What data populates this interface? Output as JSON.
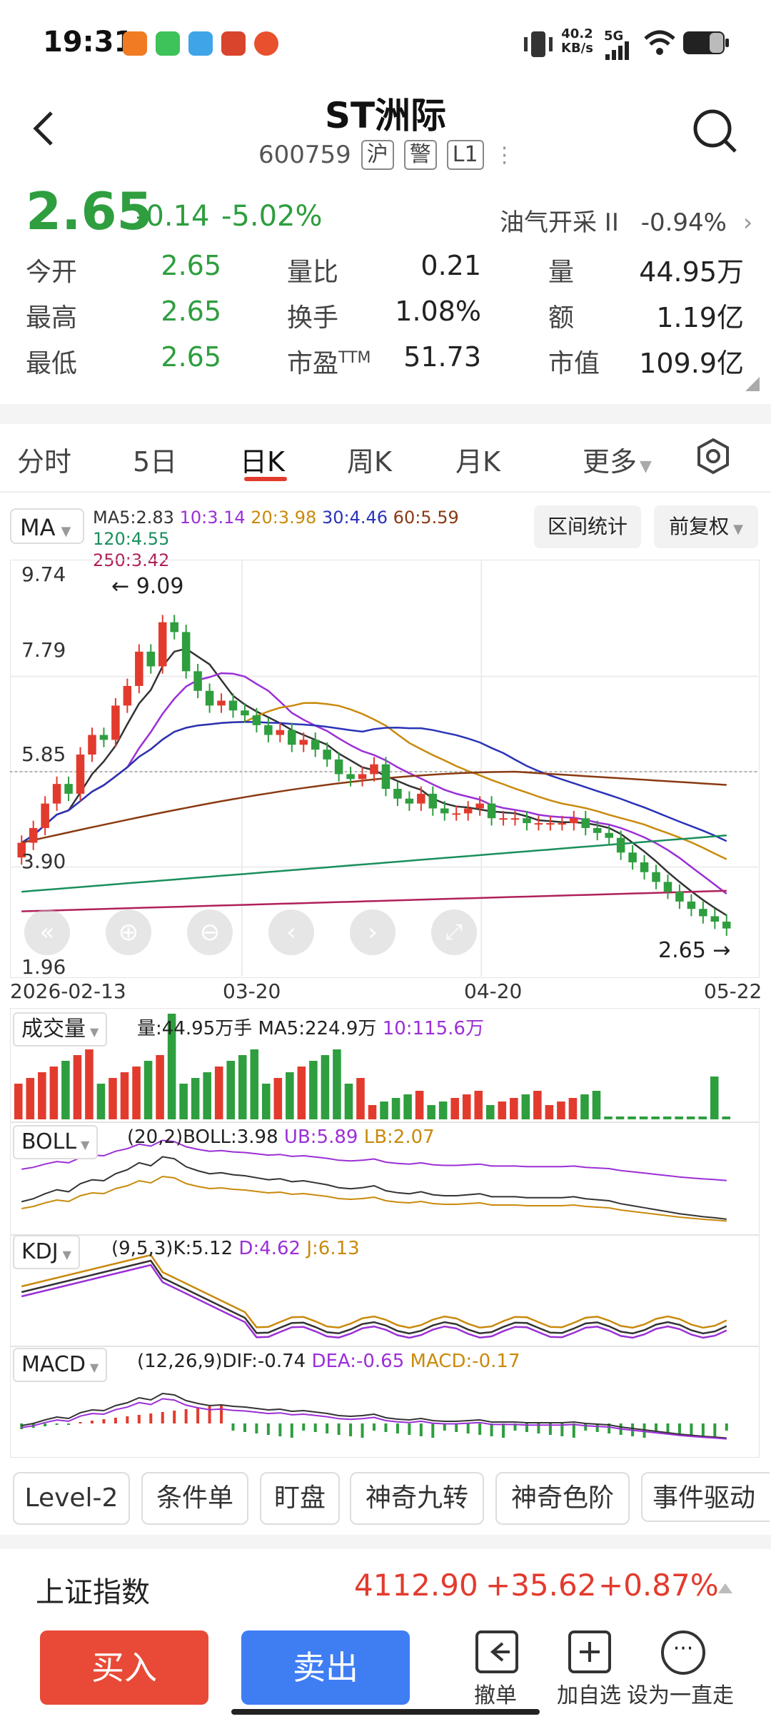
{
  "status_bar": {
    "time": "19:31",
    "net_speed_value": "40.2",
    "net_speed_unit": "KB/s",
    "network": "5G"
  },
  "header": {
    "title": "ST洲际",
    "code": "600759",
    "tags": [
      "沪",
      "警",
      "L1"
    ]
  },
  "quote": {
    "price": "2.65",
    "change": "-0.14",
    "change_pct": "-5.02%",
    "sector_name": "油气开采 II",
    "sector_pct": "-0.94%",
    "stats": [
      {
        "label": "今开",
        "value": "2.65",
        "color": "green"
      },
      {
        "label": "量比",
        "value": "0.21",
        "color": "black"
      },
      {
        "label": "量",
        "value": "44.95万",
        "color": "black"
      },
      {
        "label": "最高",
        "value": "2.65",
        "color": "green"
      },
      {
        "label": "换手",
        "value": "1.08%",
        "color": "black"
      },
      {
        "label": "额",
        "value": "1.19亿",
        "color": "black"
      },
      {
        "label": "最低",
        "value": "2.65",
        "color": "green"
      },
      {
        "label": "市盈",
        "label_sup": "TTM",
        "value": "51.73",
        "color": "black"
      },
      {
        "label": "市值",
        "value": "109.9亿",
        "color": "black"
      }
    ]
  },
  "tabs": [
    {
      "label": "分时"
    },
    {
      "label": "5日"
    },
    {
      "label": "日K",
      "active": true
    },
    {
      "label": "周K"
    },
    {
      "label": "月K"
    },
    {
      "label": "更多"
    }
  ],
  "kline": {
    "indicator": "MA",
    "ma_legend": [
      {
        "text": "MA5:2.83",
        "color": "#333333"
      },
      {
        "text": "10:3.14",
        "color": "#9b2fd6"
      },
      {
        "text": "20:3.98",
        "color": "#c98a0c"
      },
      {
        "text": "30:4.46",
        "color": "#2a33b8"
      },
      {
        "text": "60:5.59",
        "color": "#8a3a12"
      },
      {
        "text": "120:4.55",
        "color": "#1a8f5c"
      },
      {
        "text": "250:3.42",
        "color": "#b0205a"
      }
    ],
    "buttons": [
      "区间统计",
      "前复权"
    ],
    "y_labels": [
      "9.74",
      "7.79",
      "5.85",
      "3.90",
      "1.96"
    ],
    "x_labels": [
      "2026-02-13",
      "03-20",
      "04-20",
      "05-22"
    ],
    "high_label": "9.09",
    "low_label": "2.65"
  },
  "chart_data": {
    "type": "candlestick",
    "ylim": [
      1.96,
      9.74
    ],
    "x_labels": [
      "2026-02-13",
      "03-20",
      "04-20",
      "05-22"
    ],
    "annotations": {
      "high": 9.09,
      "last": 2.65
    },
    "ma": {
      "MA5": 2.83,
      "MA10": 3.14,
      "MA20": 3.98,
      "MA30": 4.46,
      "MA60": 5.59,
      "MA120": 4.55,
      "MA250": 3.42
    },
    "closes": [
      4.4,
      4.7,
      5.2,
      5.6,
      5.4,
      6.2,
      6.6,
      6.5,
      7.2,
      7.6,
      8.3,
      8.0,
      8.9,
      8.7,
      7.9,
      7.5,
      7.2,
      7.3,
      7.1,
      7.0,
      6.8,
      6.6,
      6.7,
      6.4,
      6.5,
      6.3,
      6.1,
      5.8,
      5.7,
      5.8,
      6.0,
      5.5,
      5.3,
      5.2,
      5.4,
      5.1,
      5.0,
      5.0,
      5.1,
      5.2,
      4.9,
      4.9,
      4.9,
      4.8,
      4.8,
      4.8,
      4.8,
      4.9,
      4.7,
      4.6,
      4.5,
      4.2,
      4.0,
      3.8,
      3.6,
      3.4,
      3.2,
      3.05,
      2.9,
      2.79,
      2.65
    ]
  },
  "volume": {
    "label": "成交量",
    "text": "量:44.95万手 MA5:224.9万",
    "ma10": "10:115.6万"
  },
  "boll": {
    "label": "BOLL",
    "params": "(20,2)BOLL:3.98",
    "ub": "UB:5.89",
    "lb": "LB:2.07"
  },
  "kdj": {
    "label": "KDJ",
    "params": "(9,5,3)K:5.12",
    "d": "D:4.62",
    "j": "J:6.13"
  },
  "macd": {
    "label": "MACD",
    "params": "(12,26,9)DIF:-0.74",
    "dea": "DEA:-0.65",
    "macd": "MACD:-0.17"
  },
  "feature_buttons": [
    "Level-2",
    "条件单",
    "盯盘",
    "神奇九转",
    "神奇色阶",
    "事件驱动"
  ],
  "index_bar": {
    "name": "上证指数",
    "value": "4112.90",
    "change": "+35.62",
    "pct": "+0.87%"
  },
  "bottom": {
    "buy": "买入",
    "sell": "卖出",
    "actions": [
      "撤单",
      "加自选",
      "设为一直走"
    ]
  }
}
